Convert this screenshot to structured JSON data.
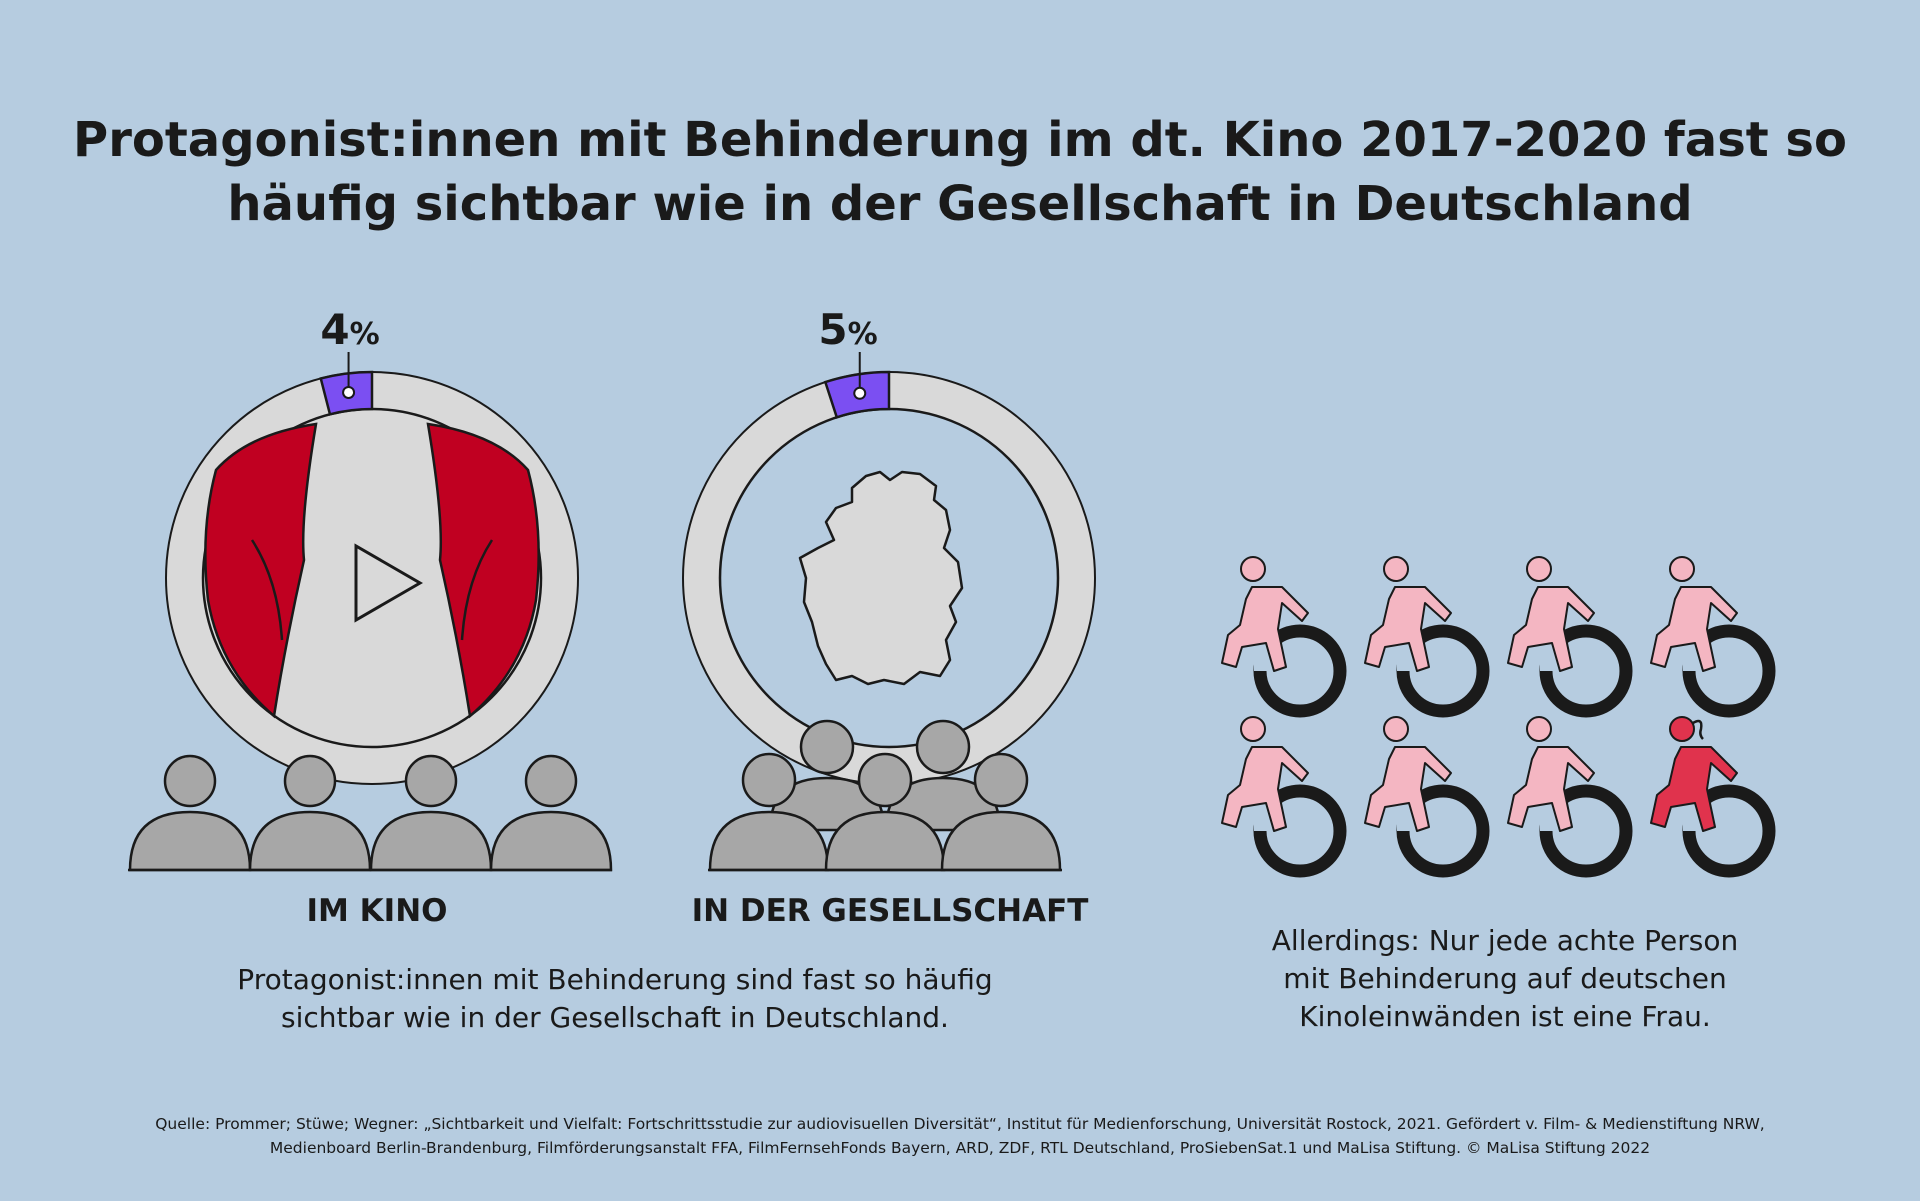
{
  "title": {
    "line1": "Protagonist:innen mit Behinderung im dt. Kino 2017-2020 fast so",
    "line2": "häufig sichtbar wie in der Gesellschaft in Deutschland"
  },
  "chart_data": [
    {
      "type": "pie",
      "title": "IM KINO",
      "value": 4,
      "unit": "%",
      "colors": {
        "highlight": "#7b4ff2",
        "rest": "#d9d9d9"
      }
    },
    {
      "type": "pie",
      "title": "IN DER GESELLSCHAFT",
      "value": 5,
      "unit": "%",
      "colors": {
        "highlight": "#7b4ff2",
        "rest": "#d9d9d9"
      }
    },
    {
      "type": "pictogram",
      "total": 8,
      "highlighted": 1,
      "icons": [
        "wheelchair-user-icon",
        "wheelchair-user-woman-icon"
      ],
      "colors": {
        "person": "#f4b6c2",
        "woman": "#e0334d",
        "wheel": "#1a1a1a"
      }
    }
  ],
  "labels": {
    "kino": "IM KINO",
    "gesellschaft": "IN DER GESELLSCHAFT",
    "kino_pct_value": "4",
    "gesellschaft_pct_value": "5",
    "pct_unit": "%"
  },
  "captions": {
    "left_line1": "Protagonist:innen mit Behinderung sind fast so häufig",
    "left_line2": "sichtbar wie in der Gesellschaft in Deutschland.",
    "right_line1": "Allerdings: Nur jede achte Person",
    "right_line2": "mit Behinderung auf deutschen",
    "right_line3": "Kinoleinwänden ist eine Frau."
  },
  "source": {
    "line1": "Quelle: Prommer; Stüwe; Wegner: „Sichtbarkeit und Vielfalt: Fortschrittsstudie zur audiovisuellen Diversität“, Institut für Medienforschung, Universität Rostock, 2021. Gefördert v. Film- & Medienstiftung NRW,",
    "line2": "Medienboard Berlin-Brandenburg, Filmförderungsanstalt FFA, FilmFernsehFonds Bayern, ARD, ZDF, RTL Deutschland, ProSiebenSat.1 und MaLisa Stiftung. © MaLisa Stiftung 2022"
  }
}
